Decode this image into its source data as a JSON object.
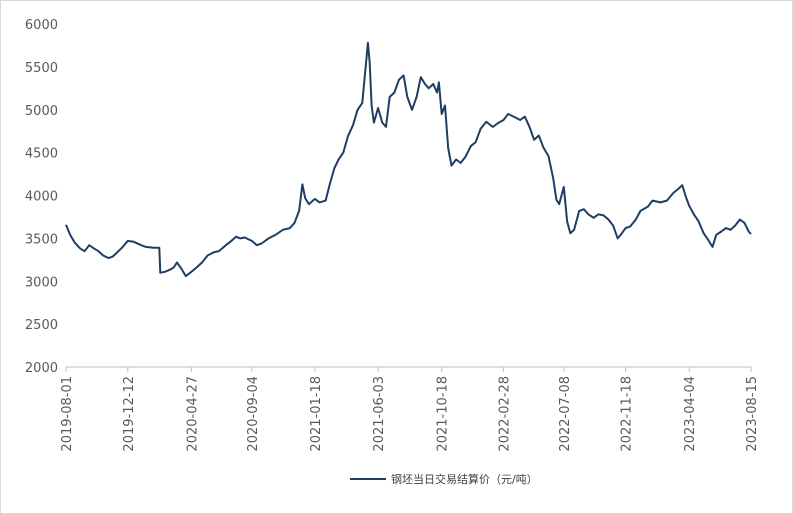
{
  "chart_data": {
    "type": "line",
    "title": "",
    "xlabel": "",
    "ylabel": "",
    "ylim": [
      2000,
      6000
    ],
    "yticks": [
      2000,
      2500,
      3000,
      3500,
      4000,
      4500,
      5000,
      5500,
      6000
    ],
    "xlim": [
      "2019-08-01",
      "2023-08-15"
    ],
    "xticks": [
      "2019-08-01",
      "2019-12-12",
      "2020-04-27",
      "2020-09-04",
      "2021-01-18",
      "2021-06-03",
      "2021-10-18",
      "2022-02-28",
      "2022-07-08",
      "2022-11-18",
      "2023-04-04",
      "2023-08-15"
    ],
    "grid": false,
    "legend_position": "bottom",
    "line_color": "#1f3e63",
    "series": [
      {
        "name": "钢坯当日交易结算价（元/吨）",
        "points": [
          [
            "2019-08-01",
            3660
          ],
          [
            "2019-08-10",
            3540
          ],
          [
            "2019-08-20",
            3450
          ],
          [
            "2019-09-01",
            3380
          ],
          [
            "2019-09-10",
            3350
          ],
          [
            "2019-09-20",
            3420
          ],
          [
            "2019-10-01",
            3380
          ],
          [
            "2019-10-10",
            3350
          ],
          [
            "2019-10-20",
            3300
          ],
          [
            "2019-11-01",
            3270
          ],
          [
            "2019-11-10",
            3290
          ],
          [
            "2019-11-20",
            3340
          ],
          [
            "2019-12-01",
            3400
          ],
          [
            "2019-12-12",
            3470
          ],
          [
            "2019-12-25",
            3460
          ],
          [
            "2020-01-10",
            3420
          ],
          [
            "2020-01-20",
            3400
          ],
          [
            "2020-02-05",
            3390
          ],
          [
            "2020-02-18",
            3390
          ],
          [
            "2020-02-20",
            3100
          ],
          [
            "2020-03-01",
            3110
          ],
          [
            "2020-03-10",
            3130
          ],
          [
            "2020-03-20",
            3160
          ],
          [
            "2020-03-27",
            3220
          ],
          [
            "2020-04-05",
            3150
          ],
          [
            "2020-04-15",
            3060
          ],
          [
            "2020-04-27",
            3110
          ],
          [
            "2020-05-10",
            3170
          ],
          [
            "2020-05-20",
            3220
          ],
          [
            "2020-06-01",
            3300
          ],
          [
            "2020-06-15",
            3340
          ],
          [
            "2020-06-25",
            3350
          ],
          [
            "2020-07-10",
            3420
          ],
          [
            "2020-07-20",
            3460
          ],
          [
            "2020-08-01",
            3520
          ],
          [
            "2020-08-10",
            3500
          ],
          [
            "2020-08-20",
            3510
          ],
          [
            "2020-09-04",
            3470
          ],
          [
            "2020-09-15",
            3420
          ],
          [
            "2020-09-25",
            3440
          ],
          [
            "2020-10-10",
            3500
          ],
          [
            "2020-10-25",
            3540
          ],
          [
            "2020-11-10",
            3600
          ],
          [
            "2020-11-25",
            3620
          ],
          [
            "2020-12-05",
            3680
          ],
          [
            "2020-12-15",
            3820
          ],
          [
            "2020-12-22",
            4130
          ],
          [
            "2020-12-28",
            3970
          ],
          [
            "2021-01-05",
            3900
          ],
          [
            "2021-01-18",
            3960
          ],
          [
            "2021-01-28",
            3920
          ],
          [
            "2021-02-10",
            3940
          ],
          [
            "2021-02-20",
            4150
          ],
          [
            "2021-03-01",
            4320
          ],
          [
            "2021-03-10",
            4420
          ],
          [
            "2021-03-20",
            4500
          ],
          [
            "2021-03-30",
            4690
          ],
          [
            "2021-04-10",
            4820
          ],
          [
            "2021-04-20",
            5000
          ],
          [
            "2021-04-30",
            5080
          ],
          [
            "2021-05-07",
            5480
          ],
          [
            "2021-05-12",
            5780
          ],
          [
            "2021-05-16",
            5550
          ],
          [
            "2021-05-20",
            5050
          ],
          [
            "2021-05-25",
            4850
          ],
          [
            "2021-06-03",
            5020
          ],
          [
            "2021-06-12",
            4850
          ],
          [
            "2021-06-20",
            4800
          ],
          [
            "2021-06-28",
            5150
          ],
          [
            "2021-07-08",
            5200
          ],
          [
            "2021-07-18",
            5350
          ],
          [
            "2021-07-28",
            5400
          ],
          [
            "2021-08-05",
            5150
          ],
          [
            "2021-08-15",
            5000
          ],
          [
            "2021-08-25",
            5150
          ],
          [
            "2021-09-03",
            5380
          ],
          [
            "2021-09-12",
            5300
          ],
          [
            "2021-09-20",
            5250
          ],
          [
            "2021-09-30",
            5300
          ],
          [
            "2021-10-08",
            5200
          ],
          [
            "2021-10-12",
            5320
          ],
          [
            "2021-10-18",
            4950
          ],
          [
            "2021-10-25",
            5050
          ],
          [
            "2021-11-01",
            4550
          ],
          [
            "2021-11-08",
            4350
          ],
          [
            "2021-11-18",
            4420
          ],
          [
            "2021-11-28",
            4380
          ],
          [
            "2021-12-08",
            4450
          ],
          [
            "2021-12-20",
            4580
          ],
          [
            "2021-12-30",
            4620
          ],
          [
            "2022-01-10",
            4780
          ],
          [
            "2022-01-22",
            4860
          ],
          [
            "2022-02-05",
            4800
          ],
          [
            "2022-02-18",
            4850
          ],
          [
            "2022-02-28",
            4880
          ],
          [
            "2022-03-10",
            4950
          ],
          [
            "2022-03-22",
            4920
          ],
          [
            "2022-04-05",
            4880
          ],
          [
            "2022-04-15",
            4920
          ],
          [
            "2022-04-25",
            4800
          ],
          [
            "2022-05-05",
            4650
          ],
          [
            "2022-05-15",
            4700
          ],
          [
            "2022-05-25",
            4560
          ],
          [
            "2022-06-05",
            4460
          ],
          [
            "2022-06-15",
            4200
          ],
          [
            "2022-06-22",
            3950
          ],
          [
            "2022-06-28",
            3900
          ],
          [
            "2022-07-08",
            4100
          ],
          [
            "2022-07-15",
            3700
          ],
          [
            "2022-07-22",
            3560
          ],
          [
            "2022-07-30",
            3600
          ],
          [
            "2022-08-10",
            3820
          ],
          [
            "2022-08-20",
            3840
          ],
          [
            "2022-08-30",
            3780
          ],
          [
            "2022-09-10",
            3740
          ],
          [
            "2022-09-20",
            3780
          ],
          [
            "2022-10-01",
            3770
          ],
          [
            "2022-10-12",
            3720
          ],
          [
            "2022-10-22",
            3650
          ],
          [
            "2022-11-01",
            3500
          ],
          [
            "2022-11-10",
            3560
          ],
          [
            "2022-11-18",
            3620
          ],
          [
            "2022-11-28",
            3640
          ],
          [
            "2022-12-10",
            3720
          ],
          [
            "2022-12-20",
            3820
          ],
          [
            "2023-01-05",
            3870
          ],
          [
            "2023-01-15",
            3940
          ],
          [
            "2023-02-01",
            3920
          ],
          [
            "2023-02-15",
            3940
          ],
          [
            "2023-03-01",
            4030
          ],
          [
            "2023-03-12",
            4080
          ],
          [
            "2023-03-20",
            4120
          ],
          [
            "2023-03-28",
            3980
          ],
          [
            "2023-04-04",
            3880
          ],
          [
            "2023-04-14",
            3780
          ],
          [
            "2023-04-24",
            3700
          ],
          [
            "2023-05-05",
            3560
          ],
          [
            "2023-05-15",
            3480
          ],
          [
            "2023-05-24",
            3400
          ],
          [
            "2023-06-01",
            3540
          ],
          [
            "2023-06-12",
            3580
          ],
          [
            "2023-06-22",
            3620
          ],
          [
            "2023-07-02",
            3600
          ],
          [
            "2023-07-12",
            3650
          ],
          [
            "2023-07-22",
            3720
          ],
          [
            "2023-08-01",
            3680
          ],
          [
            "2023-08-10",
            3580
          ],
          [
            "2023-08-15",
            3550
          ]
        ]
      }
    ]
  }
}
